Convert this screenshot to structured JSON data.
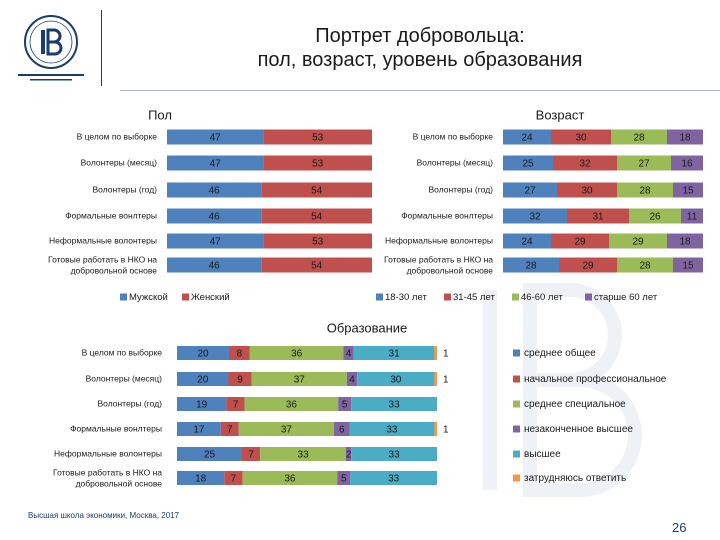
{
  "slide": {
    "title_line1": "Портрет добровольца:",
    "title_line2": "пол, возраст, уровень образования",
    "footer": "Высшая школа экономики, Москва, 2017",
    "page_number": "26"
  },
  "colors": {
    "blue": "#4f81bd",
    "red": "#c0504d",
    "green": "#9bbb59",
    "purple": "#8064a2",
    "teal": "#4bacc6",
    "orange": "#f79646",
    "brand": "#1a3c6e"
  },
  "chart_data": [
    {
      "type": "bar",
      "orientation": "horizontal",
      "stacked": true,
      "title": "Пол",
      "categories": [
        "В целом по выборке",
        "Волонтеры (месяц)",
        "Волонтеры (год)",
        "Формальные вонлтеры",
        "Неформальные волонтеры",
        "Готовые работать в НКО на добровольной основе"
      ],
      "series": [
        {
          "name": "Мужской",
          "values": [
            47,
            47,
            46,
            46,
            47,
            46
          ]
        },
        {
          "name": "Женский",
          "values": [
            53,
            53,
            54,
            54,
            53,
            54
          ]
        }
      ],
      "legend": "bottom"
    },
    {
      "type": "bar",
      "orientation": "horizontal",
      "stacked": true,
      "title": "Возраст",
      "categories": [
        "В целом по выборке",
        "Волонтеры (месяц)",
        "Волонтеры (год)",
        "Формальные вонлтеры",
        "Неформальные волонтеры",
        "Готовые работать в НКО на добровольной основе"
      ],
      "series": [
        {
          "name": "18-30 лет",
          "values": [
            24,
            25,
            27,
            32,
            24,
            28
          ]
        },
        {
          "name": "31-45 лет",
          "values": [
            30,
            32,
            30,
            31,
            29,
            29
          ]
        },
        {
          "name": "46-60 лет",
          "values": [
            28,
            27,
            28,
            26,
            29,
            28
          ]
        },
        {
          "name": "старше 60 лет",
          "values": [
            18,
            16,
            15,
            11,
            18,
            15
          ]
        }
      ],
      "legend": "bottom"
    },
    {
      "type": "bar",
      "orientation": "horizontal",
      "stacked": true,
      "title": "Образование",
      "categories": [
        "В целом по выборке",
        "Волонтеры (месяц)",
        "Волонтеры (год)",
        "Формальные вонлтеры",
        "Неформальные волонтеры",
        "Готовые работать в НКО на добровольной основе"
      ],
      "series": [
        {
          "name": "среднее общее",
          "values": [
            20,
            20,
            19,
            17,
            25,
            18
          ]
        },
        {
          "name": "начальное профессиональное",
          "values": [
            8,
            9,
            7,
            7,
            7,
            7
          ]
        },
        {
          "name": "среднее специальное",
          "values": [
            36,
            37,
            36,
            37,
            33,
            36
          ]
        },
        {
          "name": "незаконченное высшее",
          "values": [
            4,
            4,
            5,
            6,
            2,
            5
          ]
        },
        {
          "name": "высшее",
          "values": [
            31,
            30,
            33,
            33,
            33,
            33
          ]
        },
        {
          "name": "затрудняюсь ответить",
          "values": [
            1,
            1,
            0,
            1,
            0,
            0
          ]
        }
      ],
      "legend": "right"
    }
  ]
}
